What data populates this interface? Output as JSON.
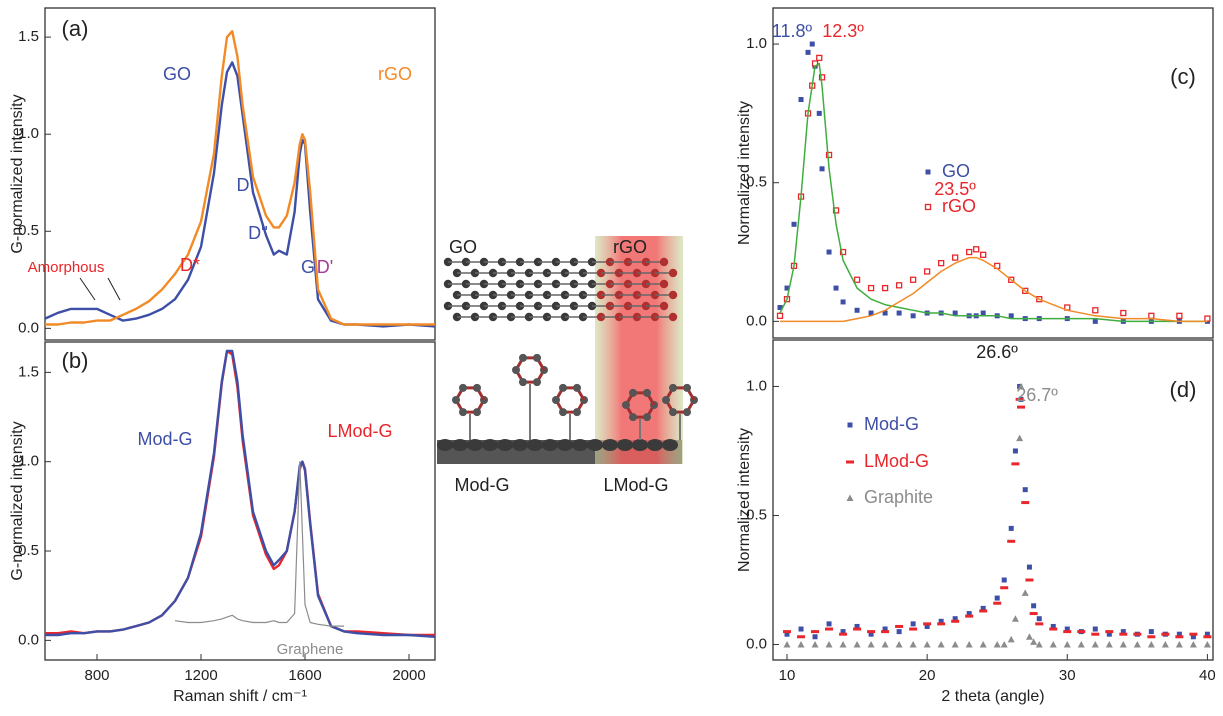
{
  "chart_data": [
    {
      "type": "line",
      "panel_label": "(a)",
      "ylabel": "G-normalized intensity",
      "x": [
        600,
        650,
        700,
        750,
        800,
        850,
        900,
        950,
        1000,
        1050,
        1100,
        1150,
        1200,
        1250,
        1280,
        1300,
        1320,
        1340,
        1360,
        1400,
        1450,
        1480,
        1500,
        1530,
        1560,
        1580,
        1590,
        1600,
        1620,
        1650,
        1700,
        1750,
        1800,
        1900,
        2000,
        2100
      ],
      "xlim": [
        600,
        2100
      ],
      "ylim": [
        -0.06,
        1.65
      ],
      "yticks": [
        {
          "value": 0,
          "label": "0.0"
        },
        0.5,
        {
          "value": 1,
          "label": "1.0"
        },
        1.5
      ],
      "series": [
        {
          "name": "GO",
          "color": "#3d4fa6",
          "values": [
            0.05,
            0.08,
            0.1,
            0.1,
            0.1,
            0.07,
            0.04,
            0.05,
            0.07,
            0.1,
            0.15,
            0.25,
            0.42,
            0.8,
            1.15,
            1.32,
            1.37,
            1.3,
            1.1,
            0.7,
            0.48,
            0.38,
            0.4,
            0.38,
            0.6,
            0.9,
            0.97,
            0.95,
            0.6,
            0.15,
            0.04,
            0.02,
            0.02,
            0.01,
            0.02,
            0.01
          ]
        },
        {
          "name": "rGO",
          "color": "#f28a26",
          "values": [
            0.02,
            0.02,
            0.03,
            0.03,
            0.04,
            0.04,
            0.07,
            0.1,
            0.14,
            0.2,
            0.28,
            0.38,
            0.55,
            0.9,
            1.3,
            1.5,
            1.53,
            1.4,
            1.15,
            0.78,
            0.58,
            0.52,
            0.52,
            0.58,
            0.75,
            0.95,
            1.0,
            0.97,
            0.7,
            0.2,
            0.05,
            0.02,
            0.02,
            0.02,
            0.02,
            0.02
          ]
        }
      ],
      "annotations": [
        {
          "text": "D",
          "color": "#3d4fa6"
        },
        {
          "text": "D''",
          "color": "#3d4fa6"
        },
        {
          "text": "G",
          "color": "#3d4fa6"
        },
        {
          "text": "D*",
          "color": "#e8262b"
        },
        {
          "text": "D'",
          "color": "#a43c96"
        },
        {
          "text": "Amorphous",
          "color": "#e8262b"
        }
      ]
    },
    {
      "type": "line",
      "panel_label": "(b)",
      "ylabel": "G-normalized intensity",
      "xlabel": "Raman shift / cm⁻¹",
      "x": [
        600,
        650,
        700,
        750,
        800,
        850,
        900,
        950,
        1000,
        1050,
        1100,
        1150,
        1200,
        1250,
        1280,
        1300,
        1320,
        1340,
        1360,
        1400,
        1450,
        1480,
        1500,
        1530,
        1560,
        1580,
        1590,
        1600,
        1620,
        1650,
        1700,
        1750,
        1800,
        1900,
        2000,
        2100
      ],
      "xlim": [
        600,
        2100
      ],
      "xticks": [
        800,
        1200,
        1600,
        2000
      ],
      "ylim": [
        -0.11,
        1.67
      ],
      "yticks": [
        {
          "value": 0,
          "label": "0.0"
        },
        0.5,
        {
          "value": 1,
          "label": "1.0"
        },
        1.5
      ],
      "series": [
        {
          "name": "LMod-G",
          "color": "#e8262b",
          "values": [
            0.04,
            0.04,
            0.05,
            0.04,
            0.05,
            0.05,
            0.06,
            0.08,
            0.1,
            0.14,
            0.22,
            0.35,
            0.58,
            1.03,
            1.44,
            1.62,
            1.6,
            1.42,
            1.12,
            0.7,
            0.48,
            0.4,
            0.42,
            0.5,
            0.72,
            0.96,
            1.0,
            0.96,
            0.66,
            0.26,
            0.08,
            0.05,
            0.05,
            0.04,
            0.03,
            0.03
          ]
        },
        {
          "name": "Mod-G",
          "color": "#3d4fa6",
          "values": [
            0.03,
            0.03,
            0.04,
            0.04,
            0.05,
            0.05,
            0.06,
            0.08,
            0.1,
            0.14,
            0.22,
            0.35,
            0.6,
            1.05,
            1.45,
            1.62,
            1.62,
            1.45,
            1.15,
            0.72,
            0.5,
            0.42,
            0.45,
            0.5,
            0.72,
            0.98,
            1.0,
            0.95,
            0.65,
            0.25,
            0.08,
            0.05,
            0.04,
            0.03,
            0.03,
            0.02
          ]
        },
        {
          "name": "Graphene",
          "color": "#8c8c8c",
          "values": [
            null,
            null,
            null,
            null,
            null,
            null,
            null,
            null,
            null,
            null,
            0.11,
            0.1,
            0.1,
            0.11,
            0.12,
            0.13,
            0.14,
            0.12,
            0.11,
            0.1,
            0.1,
            0.11,
            0.1,
            0.1,
            0.15,
            1.0,
            0.6,
            0.2,
            0.1,
            0.09,
            0.08,
            0.08,
            null,
            null,
            null,
            null
          ]
        }
      ]
    },
    {
      "type": "scatter",
      "panel_label": "(c)",
      "ylabel": "Normalized intensity",
      "x": [
        9.5,
        10,
        10.5,
        11,
        11.5,
        11.8,
        12,
        12.3,
        12.5,
        13,
        13.5,
        14,
        15,
        16,
        17,
        18,
        19,
        20,
        21,
        22,
        23,
        23.5,
        24,
        25,
        26,
        27,
        28,
        30,
        32,
        34,
        36,
        38,
        40
      ],
      "xlim": [
        9,
        40.4
      ],
      "ylim": [
        -0.06,
        1.13
      ],
      "yticks": [
        {
          "value": 0,
          "label": "0.0"
        },
        0.5,
        {
          "value": 1,
          "label": "1.0"
        }
      ],
      "series": [
        {
          "name": "GO",
          "color": "#3d4fa6",
          "marker": "square",
          "values": [
            0.05,
            0.12,
            0.35,
            0.8,
            0.97,
            1.0,
            0.92,
            0.75,
            0.55,
            0.25,
            0.12,
            0.07,
            0.04,
            0.03,
            0.03,
            0.03,
            0.02,
            0.03,
            0.03,
            0.03,
            0.02,
            0.02,
            0.03,
            0.02,
            0.02,
            0.01,
            0.01,
            0.01,
            0.0,
            0.0,
            0.0,
            0.0,
            0.0
          ]
        },
        {
          "name": "rGO",
          "color": "#e8262b",
          "marker": "open-square",
          "values": [
            0.02,
            0.08,
            0.2,
            0.45,
            0.75,
            0.85,
            0.93,
            0.95,
            0.88,
            0.6,
            0.4,
            0.25,
            0.15,
            0.12,
            0.12,
            0.13,
            0.15,
            0.18,
            0.21,
            0.23,
            0.25,
            0.26,
            0.24,
            0.2,
            0.15,
            0.11,
            0.08,
            0.05,
            0.04,
            0.03,
            0.02,
            0.02,
            0.01
          ]
        }
      ],
      "fits": [
        {
          "color": "#3fae3f",
          "values": [
            0.03,
            0.08,
            0.2,
            0.45,
            0.75,
            0.85,
            0.92,
            0.93,
            0.85,
            0.55,
            0.35,
            0.22,
            0.12,
            0.08,
            0.06,
            0.05,
            0.04,
            0.03,
            0.03,
            0.02,
            0.02,
            0.02,
            0.02,
            0.02,
            0.01,
            0.01,
            0.01,
            0.01,
            0.01,
            0,
            0,
            0,
            0
          ]
        },
        {
          "color": "#f28a26",
          "values": [
            0,
            0,
            0,
            0,
            0,
            0,
            0,
            0,
            0,
            0,
            0,
            0,
            0.01,
            0.02,
            0.04,
            0.07,
            0.1,
            0.14,
            0.18,
            0.21,
            0.23,
            0.23,
            0.22,
            0.19,
            0.15,
            0.11,
            0.08,
            0.04,
            0.02,
            0.01,
            0.01,
            0,
            0
          ]
        }
      ],
      "annotations": [
        {
          "text": "11.8º",
          "color": "#3d4fa6"
        },
        {
          "text": "12.3º",
          "color": "#e8262b"
        },
        {
          "text": "23.5º",
          "color": "#e8262b"
        }
      ]
    },
    {
      "type": "scatter",
      "panel_label": "(d)",
      "ylabel": "Normalized intensity",
      "xlabel": "2 theta (angle)",
      "x": [
        10,
        11,
        12,
        13,
        14,
        15,
        16,
        17,
        18,
        19,
        20,
        21,
        22,
        23,
        24,
        25,
        25.5,
        26,
        26.3,
        26.6,
        26.7,
        27,
        27.3,
        27.6,
        28,
        29,
        30,
        31,
        32,
        33,
        34,
        35,
        36,
        37,
        38,
        39,
        40
      ],
      "xlim": [
        9,
        40.4
      ],
      "xticks": [
        10,
        20,
        30,
        40
      ],
      "ylim": [
        -0.06,
        1.18
      ],
      "yticks": [
        {
          "value": 0,
          "label": "0.0"
        },
        0.5,
        {
          "value": 1,
          "label": "1.0"
        }
      ],
      "series": [
        {
          "name": "Mod-G",
          "color": "#3d4fa6",
          "marker": "square",
          "values": [
            0.04,
            0.06,
            0.03,
            0.08,
            0.05,
            0.07,
            0.04,
            0.06,
            0.05,
            0.08,
            0.07,
            0.09,
            0.1,
            0.12,
            0.14,
            0.18,
            0.25,
            0.45,
            0.75,
            1.0,
            0.95,
            0.6,
            0.3,
            0.15,
            0.1,
            0.07,
            0.06,
            0.05,
            0.06,
            0.04,
            0.05,
            0.04,
            0.05,
            0.04,
            0.04,
            0.03,
            0.04
          ]
        },
        {
          "name": "LMod-G",
          "color": "#e8262b",
          "marker": "dash",
          "values": [
            0.05,
            0.03,
            0.05,
            0.06,
            0.04,
            0.06,
            0.05,
            0.05,
            0.07,
            0.06,
            0.08,
            0.08,
            0.09,
            0.11,
            0.13,
            0.16,
            0.22,
            0.4,
            0.7,
            0.95,
            0.92,
            0.55,
            0.25,
            0.12,
            0.08,
            0.06,
            0.05,
            0.05,
            0.04,
            0.05,
            0.04,
            0.04,
            0.03,
            0.04,
            0.03,
            0.04,
            0.03
          ]
        },
        {
          "name": "Graphite",
          "color": "#8c8c8c",
          "marker": "triangle",
          "values": [
            0,
            0,
            0,
            0,
            0,
            0,
            0,
            0,
            0,
            0,
            0,
            0,
            0,
            0,
            0,
            0,
            0,
            0.02,
            0.1,
            0.8,
            1.0,
            0.2,
            0.03,
            0.01,
            0,
            0,
            0,
            0,
            0,
            0,
            0,
            0,
            0,
            0,
            0,
            0,
            0
          ]
        }
      ],
      "annotations": [
        {
          "text": "26.6º",
          "color": "#222222"
        },
        {
          "text": "26.7º",
          "color": "#8c8c8c"
        }
      ]
    }
  ],
  "diagram": {
    "labels": [
      "GO",
      "rGO",
      "Mod-G",
      "LMod-G"
    ]
  }
}
